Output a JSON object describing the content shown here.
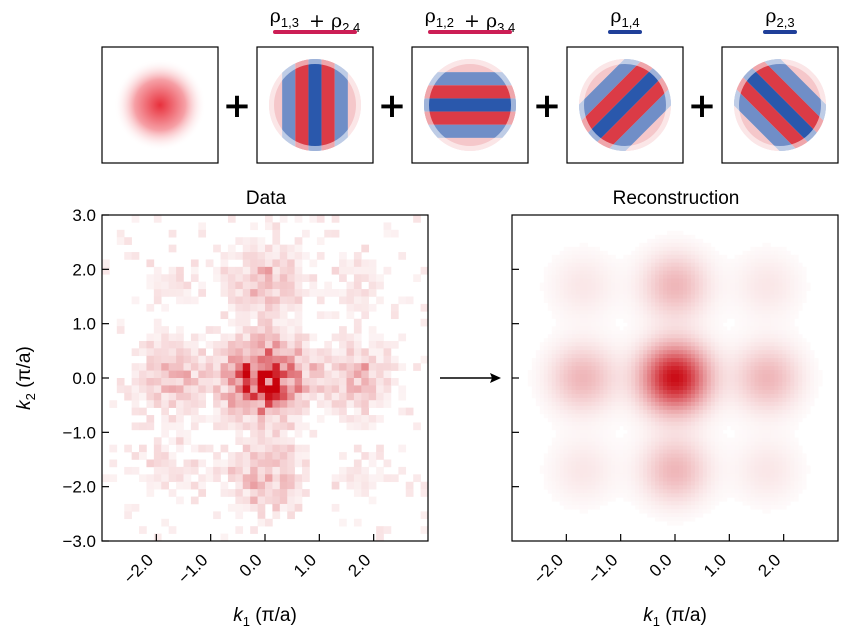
{
  "chart_data": [
    {
      "type": "image",
      "description_role": "basis functions summed to form the reconstruction",
      "terms": [
        {
          "id": "isotropic",
          "label": null,
          "bar_color": null,
          "pattern": "gaussian"
        },
        {
          "id": "rho13_rho24",
          "label": {
            "parts": [
              {
                "sym": "ρ",
                "sub": "1,3"
              },
              {
                "op": "+"
              },
              {
                "sym": "ρ",
                "sub": "2,4"
              }
            ]
          },
          "bar_color": "#cc1e55",
          "pattern": "vertical-stripes"
        },
        {
          "id": "rho12_rho34",
          "label": {
            "parts": [
              {
                "sym": "ρ",
                "sub": "1,2"
              },
              {
                "op": "+"
              },
              {
                "sym": "ρ",
                "sub": "3,4"
              }
            ]
          },
          "bar_color": "#cc1e55",
          "pattern": "horizontal-stripes"
        },
        {
          "id": "rho14",
          "label": {
            "parts": [
              {
                "sym": "ρ",
                "sub": "1,4"
              }
            ]
          },
          "bar_color": "#1f3f99",
          "pattern": "diagonal-antidiag"
        },
        {
          "id": "rho23",
          "label": {
            "parts": [
              {
                "sym": "ρ",
                "sub": "2,3"
              }
            ]
          },
          "bar_color": "#1f3f99",
          "pattern": "diagonal-diag"
        }
      ],
      "operator": "+"
    },
    {
      "type": "heatmap",
      "title": "Data",
      "xlabel": {
        "sym": "k",
        "sub": "1",
        "unit": "(π/a)"
      },
      "ylabel": {
        "sym": "k",
        "sub": "2",
        "unit": "(π/a)"
      },
      "xlim": [
        -3.0,
        3.0
      ],
      "ylim": [
        -3.0,
        3.0
      ],
      "xticks": [
        -2.0,
        -1.0,
        0.0,
        1.0,
        2.0
      ],
      "xtick_labels": [
        "−2.0",
        "−1.0",
        "0.0",
        "1.0",
        "2.0"
      ],
      "yticks": [
        3.0,
        2.0,
        1.0,
        0.0,
        -1.0,
        -2.0,
        -3.0
      ],
      "ytick_labels": [
        "3.0",
        "2.0",
        "1.0",
        "0.0",
        "−1.0",
        "−2.0",
        "−3.0"
      ],
      "bins": 44,
      "peaks": [
        {
          "k1": 0.0,
          "k2": 0.0,
          "amplitude": 1.0,
          "sigma": 0.45
        },
        {
          "k1": 1.7,
          "k2": 0.0,
          "amplitude": 0.28,
          "sigma": 0.45
        },
        {
          "k1": -1.7,
          "k2": 0.0,
          "amplitude": 0.28,
          "sigma": 0.45
        },
        {
          "k1": 0.0,
          "k2": 1.8,
          "amplitude": 0.28,
          "sigma": 0.45
        },
        {
          "k1": 0.0,
          "k2": -1.8,
          "amplitude": 0.28,
          "sigma": 0.45
        },
        {
          "k1": 1.7,
          "k2": 1.7,
          "amplitude": 0.12,
          "sigma": 0.4
        },
        {
          "k1": -1.7,
          "k2": -1.7,
          "amplitude": 0.12,
          "sigma": 0.4
        },
        {
          "k1": 1.7,
          "k2": -1.7,
          "amplitude": 0.08,
          "sigma": 0.4
        },
        {
          "k1": -1.7,
          "k2": 1.7,
          "amplitude": 0.08,
          "sigma": 0.4
        }
      ],
      "colormap": {
        "low": "#ffffff",
        "high": "#c8000a"
      }
    },
    {
      "type": "heatmap",
      "title": "Reconstruction",
      "xlabel": {
        "sym": "k",
        "sub": "1",
        "unit": "(π/a)"
      },
      "xlim": [
        -3.0,
        3.0
      ],
      "ylim": [
        -3.0,
        3.0
      ],
      "xticks": [
        -2.0,
        -1.0,
        0.0,
        1.0,
        2.0
      ],
      "xtick_labels": [
        "−2.0",
        "−1.0",
        "0.0",
        "1.0",
        "2.0"
      ],
      "yticks": [
        2.0,
        1.0,
        0.0,
        -1.0,
        -2.0
      ],
      "peaks": [
        {
          "k1": 0.0,
          "k2": 0.0,
          "amplitude": 1.0,
          "sigma": 0.42
        },
        {
          "k1": 1.7,
          "k2": 0.0,
          "amplitude": 0.3,
          "sigma": 0.42
        },
        {
          "k1": -1.7,
          "k2": 0.0,
          "amplitude": 0.3,
          "sigma": 0.42
        },
        {
          "k1": 0.0,
          "k2": 1.7,
          "amplitude": 0.3,
          "sigma": 0.42
        },
        {
          "k1": 0.0,
          "k2": -1.7,
          "amplitude": 0.3,
          "sigma": 0.42
        },
        {
          "k1": 1.7,
          "k2": 1.7,
          "amplitude": 0.1,
          "sigma": 0.42
        },
        {
          "k1": -1.7,
          "k2": -1.7,
          "amplitude": 0.1,
          "sigma": 0.42
        },
        {
          "k1": 1.7,
          "k2": -1.7,
          "amplitude": 0.1,
          "sigma": 0.42
        },
        {
          "k1": -1.7,
          "k2": 1.7,
          "amplitude": 0.1,
          "sigma": 0.42
        }
      ],
      "colormap": {
        "low": "#ffffff",
        "high": "#c8000a"
      }
    }
  ],
  "colors": {
    "red": "#c8000a",
    "blue": "#1f3f99",
    "bar_red": "#cc1e55",
    "bar_blue": "#1f3f99"
  }
}
